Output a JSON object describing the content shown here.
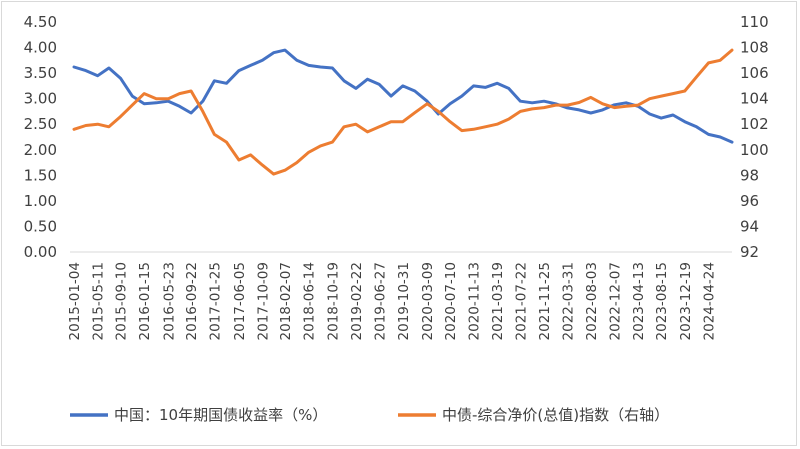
{
  "chart_data": {
    "type": "line",
    "title": "",
    "xlabel": "",
    "ylabel": "",
    "y2label": "",
    "grid": false,
    "legend_position": "bottom",
    "ylim": [
      0,
      4.5
    ],
    "y2lim": [
      92,
      110
    ],
    "y_ticks": [
      "0.00",
      "0.50",
      "1.00",
      "1.50",
      "2.00",
      "2.50",
      "3.00",
      "3.50",
      "4.00",
      "4.50"
    ],
    "y2_ticks": [
      "92",
      "94",
      "96",
      "98",
      "100",
      "102",
      "104",
      "106",
      "108",
      "110"
    ],
    "x_ticks": [
      "2015-01-04",
      "2015-05-11",
      "2015-09-10",
      "2016-01-15",
      "2016-05-23",
      "2016-09-22",
      "2017-01-25",
      "2017-06-05",
      "2017-10-09",
      "2018-02-07",
      "2018-06-14",
      "2018-10-19",
      "2019-02-22",
      "2019-06-27",
      "2019-10-31",
      "2020-03-09",
      "2020-07-10",
      "2020-11-13",
      "2021-03-19",
      "2021-07-22",
      "2021-11-25",
      "2022-03-31",
      "2022-08-03",
      "2022-12-07",
      "2023-04-13",
      "2023-08-15",
      "2023-12-19",
      "2024-04-24"
    ],
    "series": [
      {
        "name": "中国：10年期国债收益率（%）",
        "axis": "left",
        "color": "#4472c4",
        "x": [
          "2015-01-04",
          "2015-03-08",
          "2015-05-11",
          "2015-07-10",
          "2015-09-10",
          "2015-11-12",
          "2016-01-15",
          "2016-03-20",
          "2016-05-23",
          "2016-07-22",
          "2016-09-22",
          "2016-11-24",
          "2017-01-25",
          "2017-03-31",
          "2017-06-05",
          "2017-08-07",
          "2017-10-09",
          "2017-12-08",
          "2018-02-07",
          "2018-04-11",
          "2018-06-14",
          "2018-08-16",
          "2018-10-19",
          "2018-12-20",
          "2019-02-22",
          "2019-04-25",
          "2019-06-27",
          "2019-08-29",
          "2019-10-31",
          "2020-01-03",
          "2020-03-09",
          "2020-05-08",
          "2020-07-10",
          "2020-09-11",
          "2020-11-13",
          "2021-01-15",
          "2021-03-19",
          "2021-05-20",
          "2021-07-22",
          "2021-09-23",
          "2021-11-25",
          "2022-01-27",
          "2022-03-31",
          "2022-06-01",
          "2022-08-03",
          "2022-10-05",
          "2022-12-07",
          "2023-02-08",
          "2023-04-13",
          "2023-06-14",
          "2023-08-15",
          "2023-10-17",
          "2023-12-19",
          "2024-02-20",
          "2024-04-24",
          "2024-06-26",
          "2024-08-28"
        ],
        "values": [
          3.62,
          3.55,
          3.45,
          3.6,
          3.4,
          3.05,
          2.9,
          2.92,
          2.95,
          2.85,
          2.72,
          2.95,
          3.35,
          3.3,
          3.55,
          3.65,
          3.75,
          3.9,
          3.95,
          3.75,
          3.65,
          3.62,
          3.6,
          3.35,
          3.2,
          3.38,
          3.28,
          3.05,
          3.25,
          3.15,
          2.95,
          2.7,
          2.9,
          3.05,
          3.25,
          3.22,
          3.3,
          3.2,
          2.95,
          2.92,
          2.95,
          2.9,
          2.82,
          2.78,
          2.72,
          2.78,
          2.88,
          2.92,
          2.85,
          2.7,
          2.62,
          2.68,
          2.55,
          2.45,
          2.3,
          2.25,
          2.15
        ]
      },
      {
        "name": "中债-综合净价(总值)指数（右轴）",
        "axis": "right",
        "color": "#ed7d31",
        "x": [
          "2015-01-04",
          "2015-03-08",
          "2015-05-11",
          "2015-07-10",
          "2015-09-10",
          "2015-11-12",
          "2016-01-15",
          "2016-03-20",
          "2016-05-23",
          "2016-07-22",
          "2016-09-22",
          "2016-11-24",
          "2017-01-25",
          "2017-03-31",
          "2017-06-05",
          "2017-08-07",
          "2017-10-09",
          "2017-12-08",
          "2018-02-07",
          "2018-04-11",
          "2018-06-14",
          "2018-08-16",
          "2018-10-19",
          "2018-12-20",
          "2019-02-22",
          "2019-04-25",
          "2019-06-27",
          "2019-08-29",
          "2019-10-31",
          "2020-01-03",
          "2020-03-09",
          "2020-05-08",
          "2020-07-10",
          "2020-09-11",
          "2020-11-13",
          "2021-01-15",
          "2021-03-19",
          "2021-05-20",
          "2021-07-22",
          "2021-09-23",
          "2021-11-25",
          "2022-01-27",
          "2022-03-31",
          "2022-06-01",
          "2022-08-03",
          "2022-10-05",
          "2022-12-07",
          "2023-02-08",
          "2023-04-13",
          "2023-06-14",
          "2023-08-15",
          "2023-10-17",
          "2023-12-19",
          "2024-02-20",
          "2024-04-24",
          "2024-06-26",
          "2024-08-28"
        ],
        "values": [
          101.6,
          101.9,
          102.0,
          101.8,
          102.6,
          103.5,
          104.4,
          104.0,
          104.0,
          104.4,
          104.6,
          103.0,
          101.2,
          100.6,
          99.2,
          99.6,
          98.8,
          98.1,
          98.4,
          99.0,
          99.8,
          100.3,
          100.6,
          101.8,
          102.0,
          101.4,
          101.8,
          102.2,
          102.2,
          102.9,
          103.6,
          103.0,
          102.2,
          101.5,
          101.6,
          101.8,
          102.0,
          102.4,
          103.0,
          103.2,
          103.3,
          103.5,
          103.5,
          103.7,
          104.1,
          103.6,
          103.3,
          103.4,
          103.5,
          104.0,
          104.2,
          104.4,
          104.6,
          105.7,
          106.8,
          107.0,
          107.8
        ]
      }
    ]
  }
}
